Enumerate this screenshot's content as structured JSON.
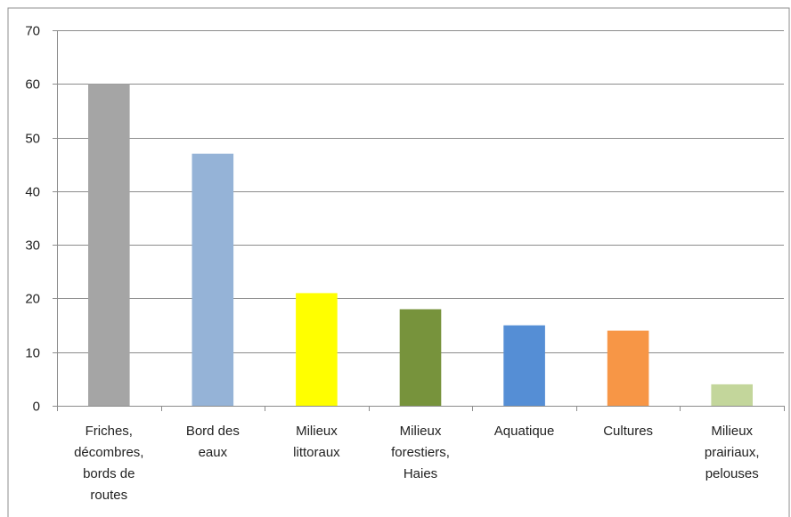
{
  "chart_data": {
    "type": "bar",
    "title": "",
    "xlabel": "",
    "ylabel": "",
    "ylim": [
      0,
      70
    ],
    "yticks": [
      0,
      10,
      20,
      30,
      40,
      50,
      60,
      70
    ],
    "grid": true,
    "legend": "none",
    "categories": [
      [
        "Friches,",
        "décombres,",
        "bords de",
        "routes"
      ],
      [
        "Bord des",
        "eaux"
      ],
      [
        "Milieux",
        "littoraux"
      ],
      [
        "Milieux",
        "forestiers,",
        "Haies"
      ],
      [
        "Aquatique"
      ],
      [
        "Cultures"
      ],
      [
        "Milieux",
        "prairiaux,",
        "pelouses"
      ]
    ],
    "values": [
      60,
      47,
      21,
      18,
      15,
      14,
      4
    ],
    "colors": [
      "#a5a5a5",
      "#95b3d7",
      "#ffff00",
      "#77933c",
      "#558ed5",
      "#f79646",
      "#c3d69b"
    ]
  }
}
